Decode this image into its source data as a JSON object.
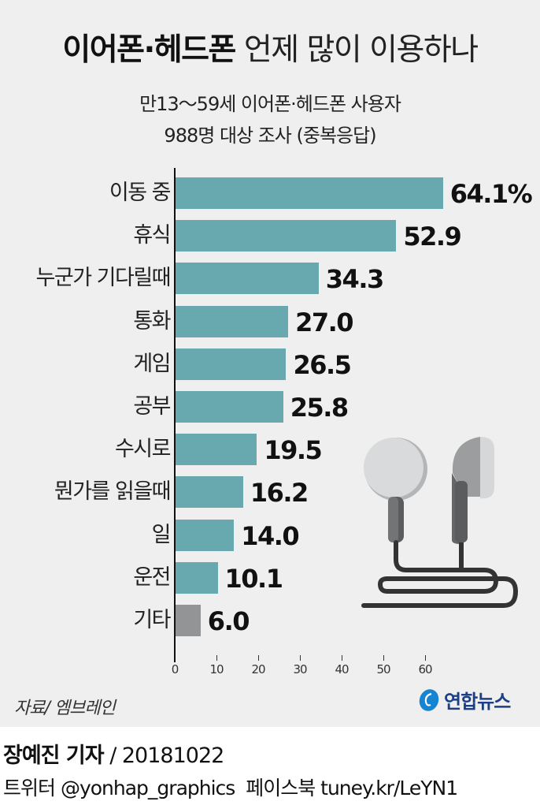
{
  "header": {
    "title_bold": "이어폰·헤드폰",
    "title_light": "언제 많이 이용하나",
    "subtitle_line1": "만13～59세 이어폰·헤드폰 사용자",
    "subtitle_line2": "988명 대상 조사 (중복응답)"
  },
  "colors": {
    "bar": "#68a8af",
    "bar_other": "#939496",
    "background": "#efefef",
    "logo_blue": "#1c3f85"
  },
  "chart_data": {
    "type": "bar",
    "orientation": "horizontal",
    "title": "이어폰·헤드폰 언제 많이 이용하나",
    "subtitle": "만13～59세 이어폰·헤드폰 사용자 988명 대상 조사 (중복응답)",
    "categories": [
      "이동 중",
      "휴식",
      "누군가 기다릴때",
      "통화",
      "게임",
      "공부",
      "수시로",
      "뭔가를 읽을때",
      "일",
      "운전",
      "기타"
    ],
    "values": [
      64.1,
      52.9,
      34.3,
      27.0,
      26.5,
      25.8,
      19.5,
      16.2,
      14.0,
      10.1,
      6.0
    ],
    "value_labels": [
      "64.1%",
      "52.9",
      "34.3",
      "27.0",
      "26.5",
      "25.8",
      "19.5",
      "16.2",
      "14.0",
      "10.1",
      "6.0"
    ],
    "unit": "%",
    "xlabel": "",
    "ylabel": "",
    "xlim": [
      0,
      65
    ],
    "xticks": [
      0,
      10,
      20,
      30,
      40,
      50,
      60
    ],
    "grid": false,
    "legend": "none"
  },
  "footer": {
    "source": "자료/ 엠브레인",
    "logo_text": "연합뉴스",
    "reporter": "장예진 기자",
    "date": " / 20181022",
    "social": "트위터 @yonhap_graphics  페이스북 tuney.kr/LeYN1"
  }
}
